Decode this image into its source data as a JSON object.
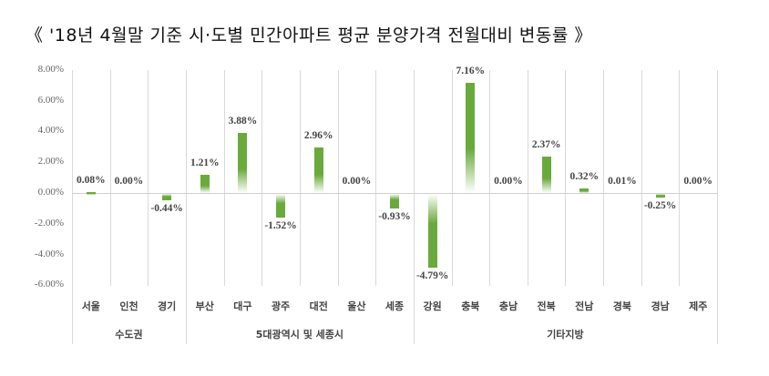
{
  "title": "《 '18년 4월말 기준 시·도별 민간아파트 평균 분양가격 전월대비 변동률 》",
  "colors": {
    "bar": "#6aaa3c",
    "grid": "#d9d9d9",
    "text": "#444444"
  },
  "chart_data": {
    "type": "bar",
    "title": "《 '18년 4월말 기준 시·도별 민간아파트 평균 분양가격 전월대비 변동률 》",
    "xlabel": "",
    "ylabel": "",
    "ylim": [
      -6,
      8
    ],
    "yticks": [
      "8.00%",
      "6.00%",
      "4.00%",
      "2.00%",
      "0.00%",
      "-2.00%",
      "-4.00%",
      "-6.00%"
    ],
    "categories": [
      "서울",
      "인천",
      "경기",
      "부산",
      "대구",
      "광주",
      "대전",
      "울산",
      "세종",
      "강원",
      "충북",
      "충남",
      "전북",
      "전남",
      "경북",
      "경남",
      "제주"
    ],
    "values": [
      0.08,
      0.0,
      -0.44,
      1.21,
      3.88,
      -1.52,
      2.96,
      0.0,
      -0.93,
      -4.79,
      7.16,
      0.0,
      2.37,
      0.32,
      0.01,
      -0.25,
      0.0
    ],
    "labels": [
      "0.08%",
      "0.00%",
      "-0.44%",
      "1.21%",
      "3.88%",
      "-1.52%",
      "2.96%",
      "0.00%",
      "-0.93%",
      "-4.79%",
      "7.16%",
      "0.00%",
      "2.37%",
      "0.32%",
      "0.01%",
      "-0.25%",
      "0.00%"
    ],
    "groups": [
      {
        "name": "수도권",
        "start": 0,
        "end": 2
      },
      {
        "name": "5대광역시 및 세종시",
        "start": 3,
        "end": 8
      },
      {
        "name": "기타지방",
        "start": 9,
        "end": 16
      }
    ],
    "grid": "vertical category separators",
    "legend": "none"
  }
}
